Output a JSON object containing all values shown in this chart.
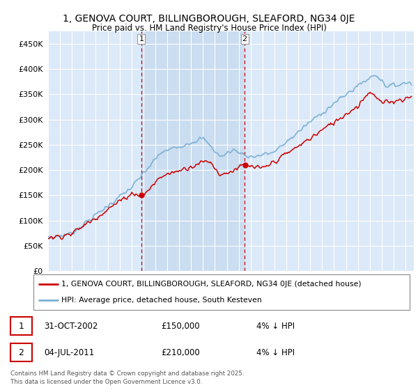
{
  "title_line1": "1, GENOVA COURT, BILLINGBOROUGH, SLEAFORD, NG34 0JE",
  "title_line2": "Price paid vs. HM Land Registry's House Price Index (HPI)",
  "background_color": "#ffffff",
  "plot_bg": "#dce9f8",
  "grid_color": "#ffffff",
  "ylim": [
    0,
    475000
  ],
  "yticks": [
    0,
    50000,
    100000,
    150000,
    200000,
    250000,
    300000,
    350000,
    400000,
    450000
  ],
  "ytick_labels": [
    "£0",
    "£50K",
    "£100K",
    "£150K",
    "£200K",
    "£250K",
    "£300K",
    "£350K",
    "£400K",
    "£450K"
  ],
  "legend_line1": "1, GENOVA COURT, BILLINGBOROUGH, SLEAFORD, NG34 0JE (detached house)",
  "legend_line2": "HPI: Average price, detached house, South Kesteven",
  "sale1_date": "31-OCT-2002",
  "sale1_price": "£150,000",
  "sale1_hpi": "4% ↓ HPI",
  "sale2_date": "04-JUL-2011",
  "sale2_price": "£210,000",
  "sale2_hpi": "4% ↓ HPI",
  "footer": "Contains HM Land Registry data © Crown copyright and database right 2025.\nThis data is licensed under the Open Government Licence v3.0.",
  "line_color_red": "#cc0000",
  "line_color_blue": "#7ab0d4",
  "shade_color": "#c5d9ee",
  "vline_color": "#cc0000",
  "sale1_year": 2002.83,
  "sale2_year": 2011.5,
  "sale1_price_val": 150000,
  "sale2_price_val": 210000
}
